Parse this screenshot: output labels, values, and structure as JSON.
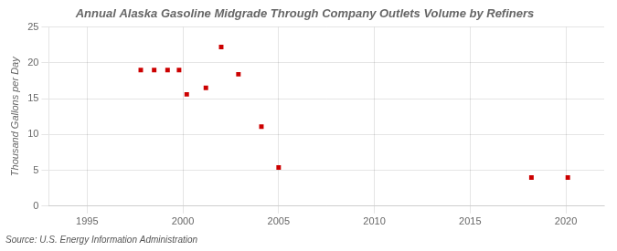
{
  "chart_data": {
    "type": "scatter",
    "title": "Annual Alaska Gasoline Midgrade Through Company Outlets Volume by Refiners",
    "ylabel": "Thousand Gallons per Day",
    "source": "Source: U.S. Energy Information Administration",
    "x": [
      1997.8,
      1998.5,
      1999.2,
      1999.8,
      2000.2,
      2001.2,
      2002.0,
      2002.9,
      2004.1,
      2005.0,
      2018.2,
      2020.1
    ],
    "values": [
      19.0,
      19.0,
      19.0,
      19.0,
      15.6,
      16.5,
      22.2,
      18.4,
      11.1,
      5.4,
      4.0,
      4.0
    ],
    "color": "#cc0000",
    "marker": "square",
    "xlim": [
      1993,
      2022
    ],
    "xticks": [
      1995,
      2000,
      2005,
      2010,
      2015,
      2020
    ],
    "ylim": [
      0,
      25
    ],
    "yticks": [
      0,
      5,
      10,
      15,
      20,
      25
    ],
    "grid": true
  }
}
